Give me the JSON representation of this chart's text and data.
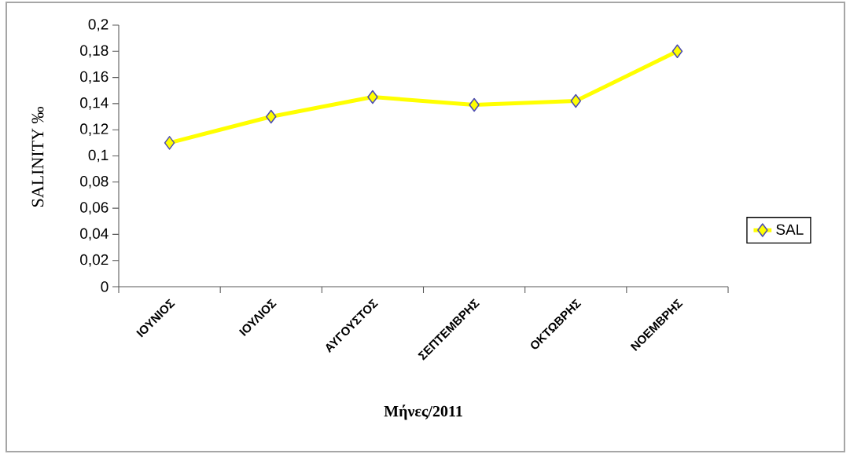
{
  "chart_data": {
    "type": "line",
    "xlabel": "**Μήνες/2011**",
    "ylabel": "SALINITY ‰",
    "categories": [
      "ΙΟΥΝΙΟΣ",
      "ΙΟΥΛΙΟΣ",
      "ΑΥΓΟΥΣΤΟΣ",
      "ΣΕΠΤΕΜΒΡΗΣ",
      "ΟΚΤΩΒΡΗΣ",
      "ΝΟΕΜΒΡΗΣ"
    ],
    "series": [
      {
        "name": "SAL",
        "color": "#ffff00",
        "values": [
          0.11,
          0.13,
          0.145,
          0.139,
          0.142,
          0.18
        ]
      }
    ],
    "ylim": [
      0,
      0.2
    ],
    "yticks": [
      {
        "value": 0,
        "label": "0"
      },
      {
        "value": 0.02,
        "label": "0,02"
      },
      {
        "value": 0.04,
        "label": "0,04"
      },
      {
        "value": 0.06,
        "label": "0,06"
      },
      {
        "value": 0.08,
        "label": "0,08"
      },
      {
        "value": 0.1,
        "label": "0,1"
      },
      {
        "value": 0.12,
        "label": "0,12"
      },
      {
        "value": 0.14,
        "label": "0,14"
      },
      {
        "value": 0.16,
        "label": "0,16"
      },
      {
        "value": 0.18,
        "label": "0,18"
      },
      {
        "value": 0.2,
        "label": "0,2"
      }
    ],
    "legend": "right",
    "marker": "diamond",
    "line_style": "solid"
  }
}
